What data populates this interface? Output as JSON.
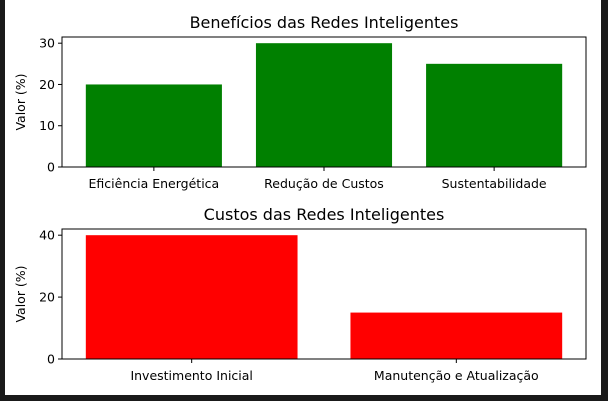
{
  "chart_data": [
    {
      "type": "bar",
      "title": "Benefícios das Redes Inteligentes",
      "xlabel": "",
      "ylabel": "Valor (%)",
      "categories": [
        "Eficiência Energética",
        "Redução de Custos",
        "Sustentabilidade"
      ],
      "values": [
        20,
        30,
        25
      ],
      "ylim": [
        0,
        31.5
      ],
      "yticks": [
        0,
        10,
        20,
        30
      ],
      "bar_color": "#008000",
      "grid": false
    },
    {
      "type": "bar",
      "title": "Custos das Redes Inteligentes",
      "xlabel": "",
      "ylabel": "Valor (%)",
      "categories": [
        "Investimento Inicial",
        "Manutenção e Atualização"
      ],
      "values": [
        40,
        15
      ],
      "ylim": [
        0,
        42
      ],
      "yticks": [
        0,
        20,
        40
      ],
      "bar_color": "#ff0000",
      "grid": false
    }
  ]
}
